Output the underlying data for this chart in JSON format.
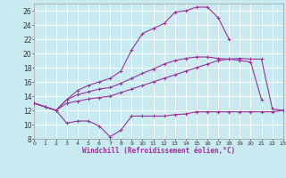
{
  "xlabel": "Windchill (Refroidissement éolien,°C)",
  "bg_color": "#c8eaf0",
  "grid_color": "#ffffff",
  "line_color": "#993399",
  "ylim": [
    8,
    27
  ],
  "xlim": [
    0,
    23
  ],
  "yticks": [
    8,
    10,
    12,
    14,
    16,
    18,
    20,
    22,
    24,
    26
  ],
  "xticks": [
    0,
    1,
    2,
    3,
    4,
    5,
    6,
    7,
    8,
    9,
    10,
    11,
    12,
    13,
    14,
    15,
    16,
    17,
    18,
    19,
    20,
    21,
    22,
    23
  ],
  "line1_x": [
    0,
    1,
    2,
    3,
    4,
    5,
    6,
    7,
    8,
    9,
    10,
    11,
    12,
    13,
    14,
    15,
    16,
    17,
    18,
    19,
    20,
    21,
    22,
    23
  ],
  "line1_y": [
    13.0,
    12.5,
    12.0,
    10.2,
    10.5,
    10.5,
    9.8,
    8.3,
    9.2,
    11.2,
    11.2,
    11.2,
    11.2,
    11.4,
    11.5,
    11.8,
    11.8,
    11.8,
    11.8,
    11.8,
    11.8,
    11.8,
    11.8,
    12.0
  ],
  "line2_x": [
    0,
    1,
    2,
    3,
    4,
    5,
    6,
    7,
    8,
    9,
    10,
    11,
    12,
    13,
    14,
    15,
    16,
    17,
    18,
    19,
    20,
    21,
    22,
    23
  ],
  "line2_y": [
    13.0,
    12.5,
    12.0,
    13.0,
    13.3,
    13.6,
    13.8,
    14.0,
    14.5,
    15.0,
    15.5,
    16.0,
    16.5,
    17.0,
    17.5,
    18.0,
    18.5,
    19.0,
    19.2,
    19.3,
    19.2,
    19.2,
    12.2,
    12.0
  ],
  "line3_x": [
    0,
    1,
    2,
    3,
    4,
    5,
    6,
    7,
    8,
    9,
    10,
    11,
    12,
    13,
    14,
    15,
    16,
    17,
    18,
    19,
    20,
    21
  ],
  "line3_y": [
    13.0,
    12.5,
    12.0,
    13.5,
    14.2,
    14.6,
    15.0,
    15.2,
    15.8,
    16.5,
    17.2,
    17.8,
    18.5,
    19.0,
    19.3,
    19.5,
    19.5,
    19.3,
    19.2,
    19.0,
    18.8,
    13.5
  ],
  "line4_x": [
    0,
    1,
    2,
    3,
    4,
    5,
    6,
    7,
    8,
    9,
    10,
    11,
    12,
    13,
    14,
    15,
    16,
    17,
    18
  ],
  "line4_y": [
    13.0,
    12.5,
    12.0,
    13.5,
    14.8,
    15.5,
    16.0,
    16.5,
    17.5,
    20.5,
    22.8,
    23.5,
    24.2,
    25.8,
    26.0,
    26.5,
    26.5,
    25.0,
    22.0
  ]
}
